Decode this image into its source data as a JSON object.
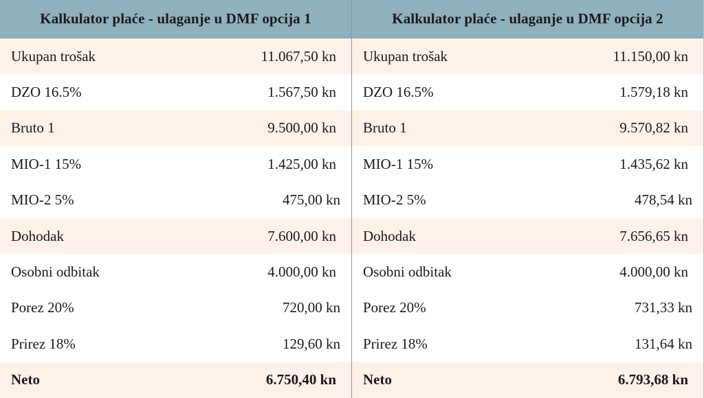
{
  "tables": [
    {
      "title": "Kalkulator plaće - ulaganje u DMF opcija 1",
      "rows": [
        {
          "label": "Ukupan trošak",
          "value": "11.067,50 kn"
        },
        {
          "label": "DZO 16.5%",
          "value": "1.567,50 kn"
        },
        {
          "label": "Bruto 1",
          "value": "9.500,00 kn"
        },
        {
          "label": "MIO-1 15%",
          "value": "1.425,00 kn"
        },
        {
          "label": "MIO-2 5%",
          "value": "475,00 kn"
        },
        {
          "label": "Dohodak",
          "value": "7.600,00 kn"
        },
        {
          "label": "Osobni odbitak",
          "value": "4.000,00 kn"
        },
        {
          "label": "Porez 20%",
          "value": "720,00 kn"
        },
        {
          "label": "Prirez 18%",
          "value": "129,60 kn"
        },
        {
          "label": "Neto",
          "value": "6.750,40 kn"
        }
      ]
    },
    {
      "title": "Kalkulator plaće - ulaganje u DMF opcija 2",
      "rows": [
        {
          "label": "Ukupan trošak",
          "value": "11.150,00 kn"
        },
        {
          "label": "DZO 16.5%",
          "value": "1.579,18 kn"
        },
        {
          "label": "Bruto 1",
          "value": "9.570,82 kn"
        },
        {
          "label": "MIO-1 15%",
          "value": "1.435,62 kn"
        },
        {
          "label": "MIO-2 5%",
          "value": "478,54 kn"
        },
        {
          "label": "Dohodak",
          "value": "7.656,65 kn"
        },
        {
          "label": "Osobni odbitak",
          "value": "4.000,00 kn"
        },
        {
          "label": "Porez 20%",
          "value": "731,33 kn"
        },
        {
          "label": "Prirez 18%",
          "value": "131,64 kn"
        },
        {
          "label": "Neto",
          "value": "6.793,68 kn"
        }
      ]
    }
  ],
  "colors": {
    "header_bg": "#8fb0bd",
    "shaded_row_bg": "#fdf1ea",
    "plain_row_bg": "#ffffff"
  }
}
